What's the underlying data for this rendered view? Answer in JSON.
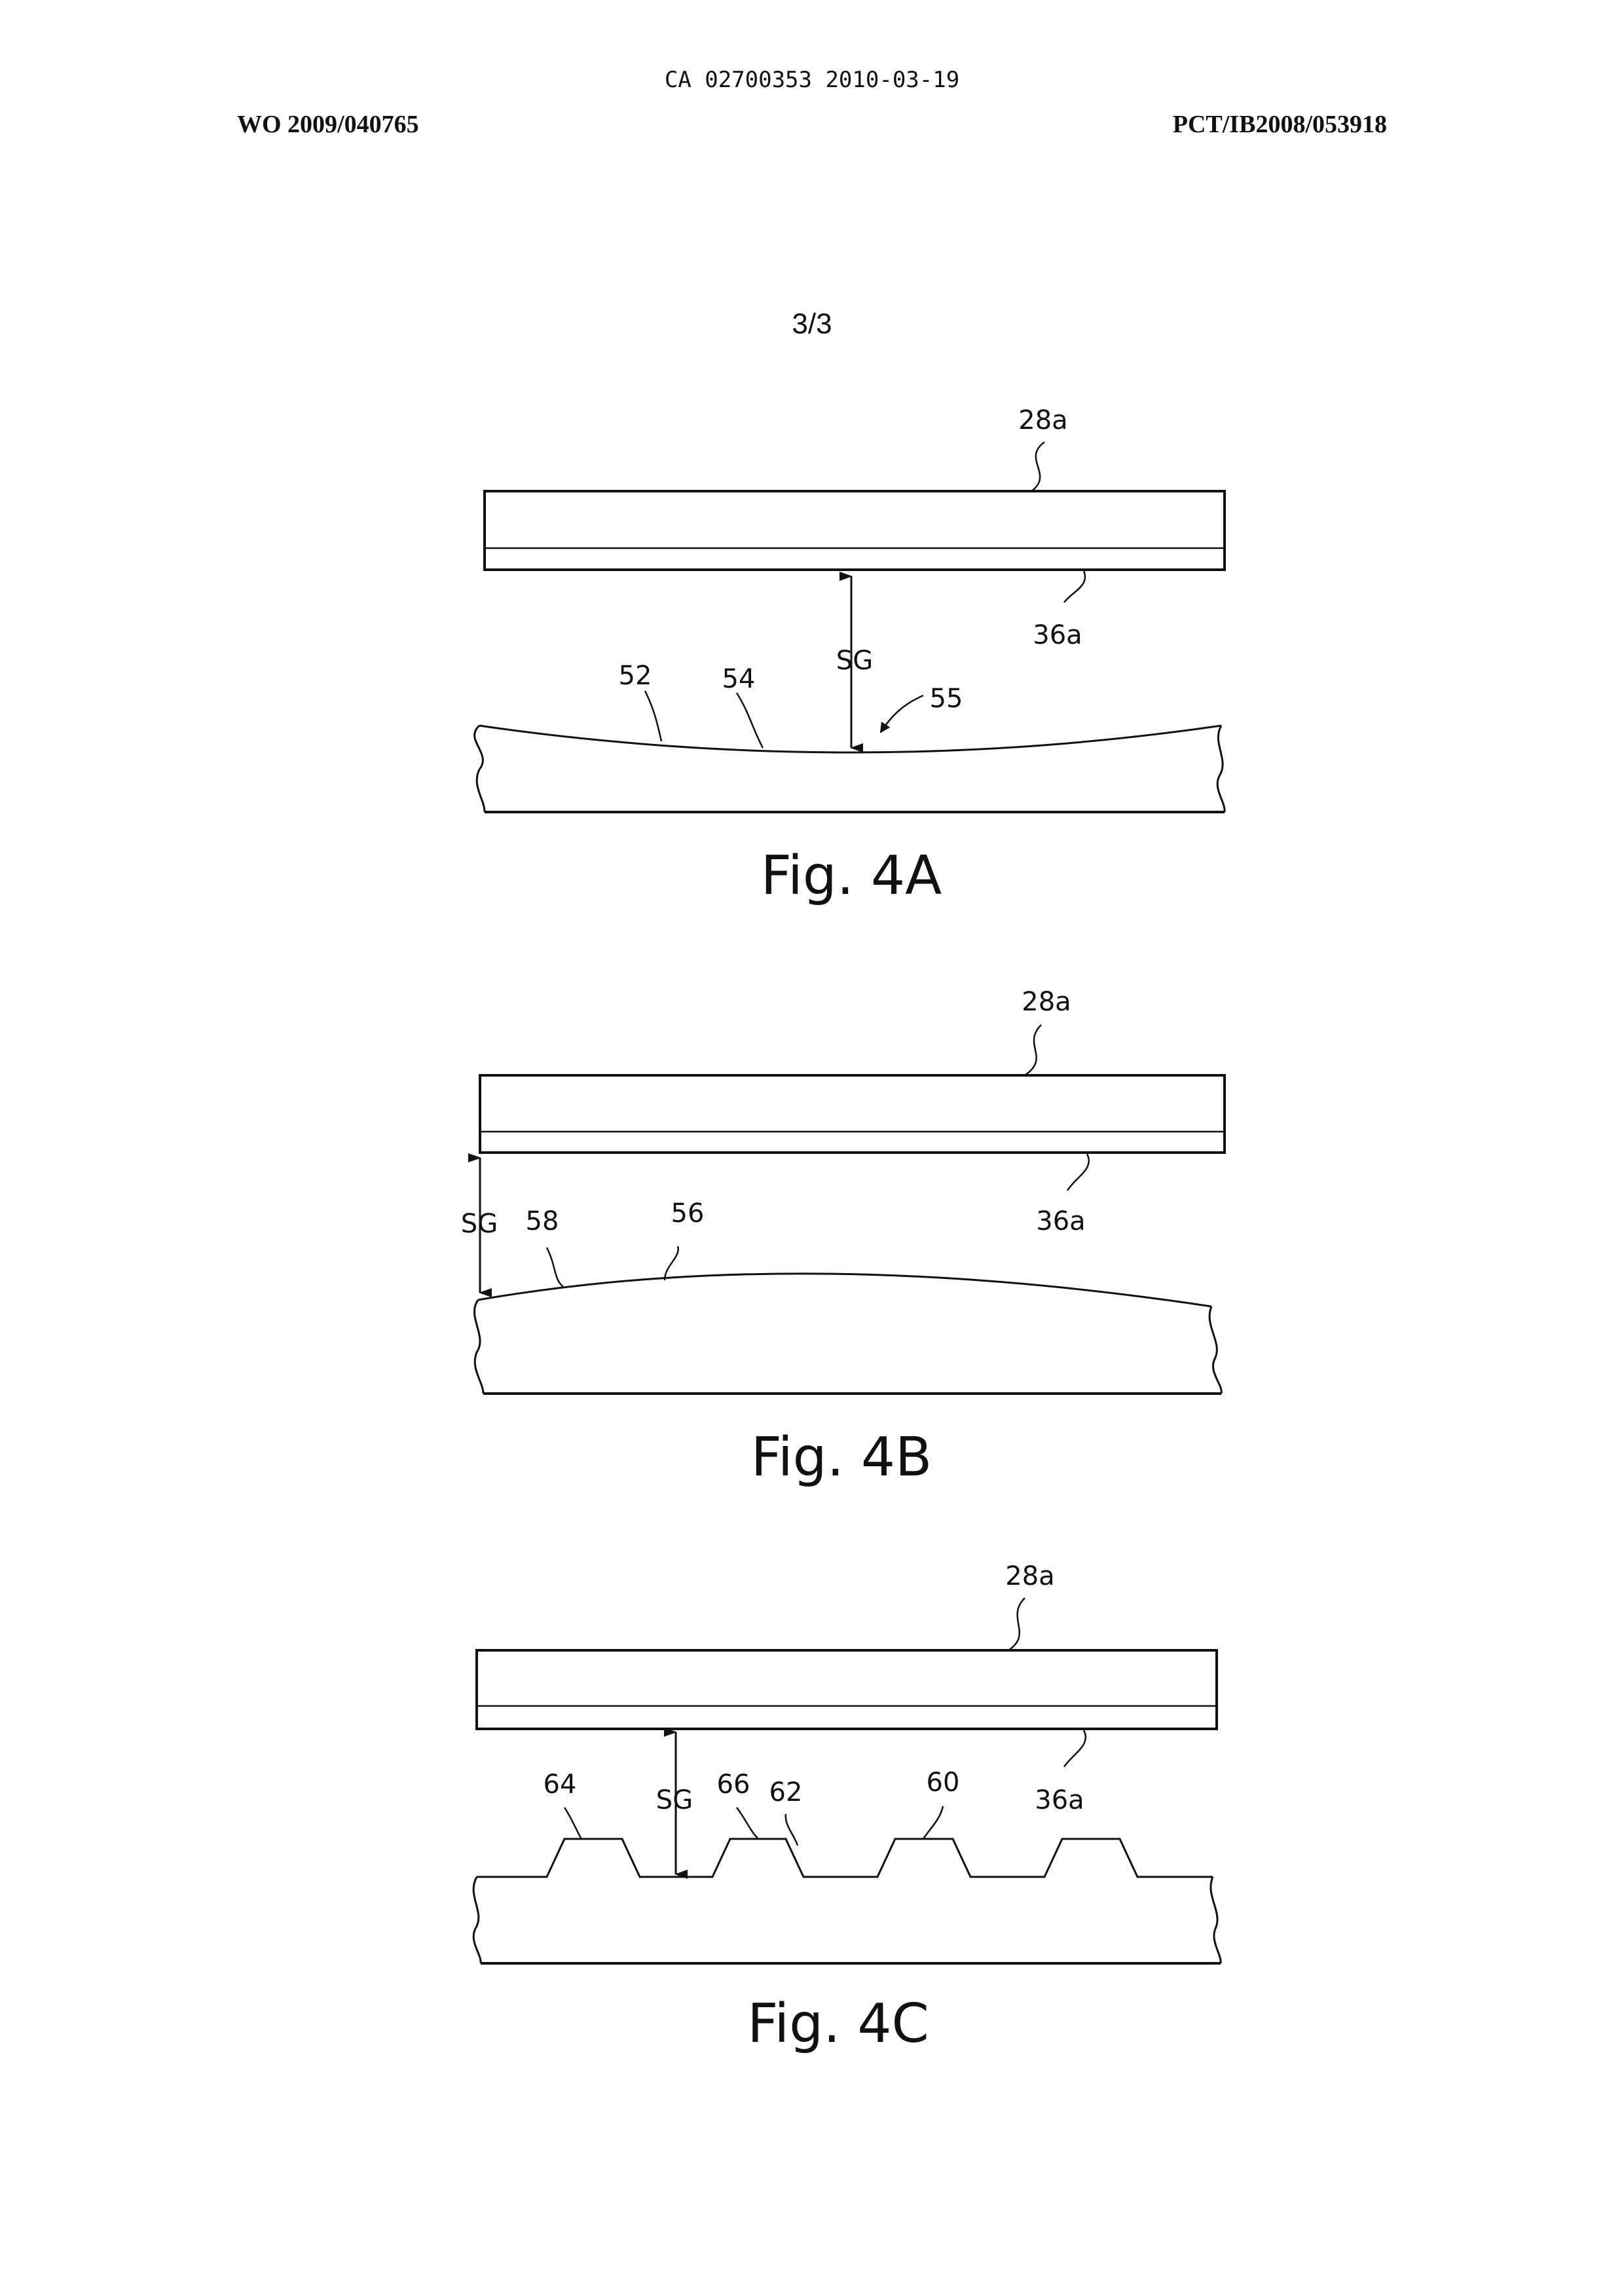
{
  "header": {
    "ca_number": "CA 02700353 2010-03-19",
    "wo_number": "WO 2009/040765",
    "pct_number": "PCT/IB2008/053918"
  },
  "sheet_number": "3/3",
  "figures": [
    {
      "caption": "Fig. 4A",
      "labels": {
        "plate": "28a",
        "layer": "36a",
        "gap": "SG",
        "ref_a": "52",
        "ref_b": "54",
        "ref_c": "55"
      }
    },
    {
      "caption": "Fig. 4B",
      "labels": {
        "plate": "28a",
        "layer": "36a",
        "gap": "SG",
        "ref_a": "58",
        "ref_b": "56"
      }
    },
    {
      "caption": "Fig. 4C",
      "labels": {
        "plate": "28a",
        "layer": "36a",
        "gap": "SG",
        "ref_a": "64",
        "ref_b": "66",
        "ref_c": "62",
        "ref_d": "60"
      }
    }
  ],
  "colors": {
    "ink": "#111111",
    "paper": "#ffffff"
  }
}
